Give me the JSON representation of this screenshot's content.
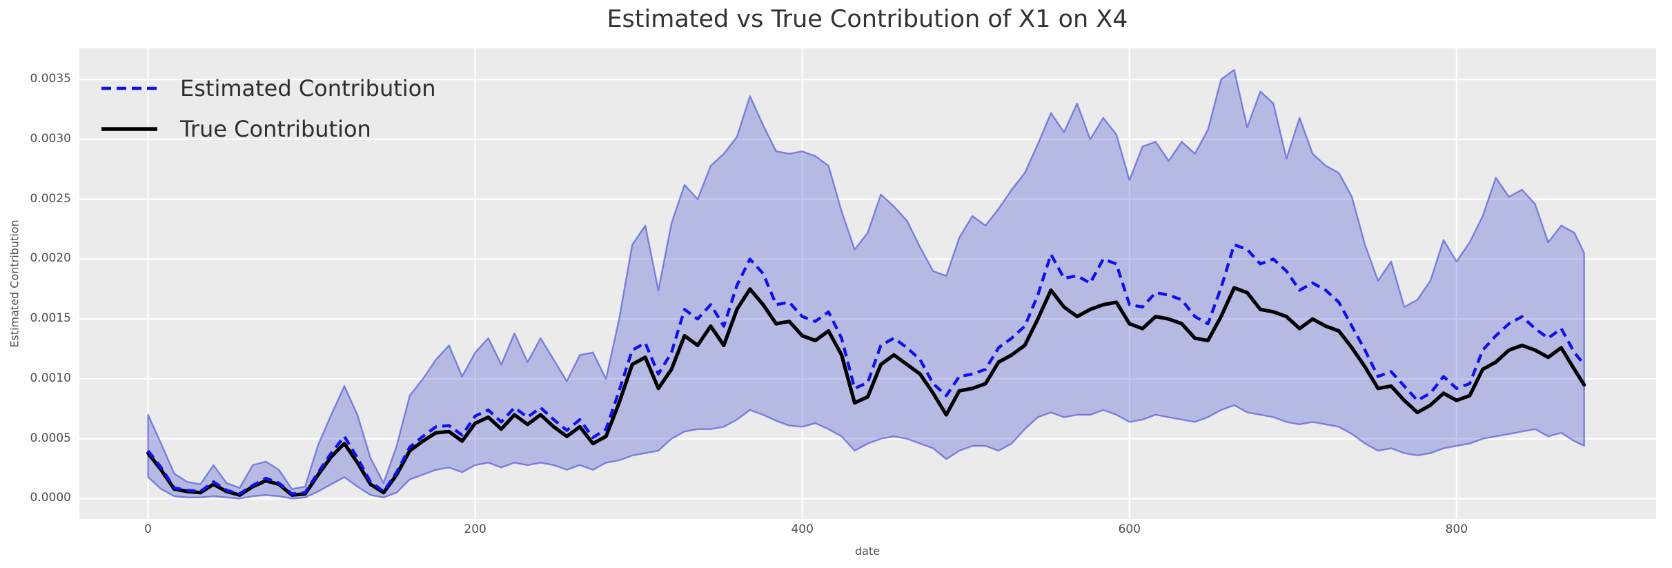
{
  "figure": {
    "background_color": "#ffffff",
    "axes_background_color": "#ebebeb",
    "grid_color": "#ffffff",
    "title_color": "#333333",
    "tick_label_color": "#4d4d4d"
  },
  "legend": {
    "position": "upper left",
    "entries": [
      {
        "label": "Estimated Contribution",
        "style": "dashed",
        "color": "#1010e8"
      },
      {
        "label": "True Contribution",
        "style": "solid",
        "color": "#000000"
      }
    ]
  },
  "chart_data": {
    "type": "line",
    "title": "Estimated vs True Contribution of X1 on X4",
    "xlabel": "date",
    "ylabel": "Estimated Contribution",
    "xlim": [
      -42,
      922
    ],
    "ylim": [
      -0.00017,
      0.00376
    ],
    "grid": true,
    "legend_position": "upper left",
    "x_ticks": [
      0,
      200,
      400,
      600,
      800
    ],
    "x_tick_labels": [
      "0",
      "200",
      "400",
      "600",
      "800"
    ],
    "y_ticks": [
      0.0,
      0.0005,
      0.001,
      0.0015,
      0.002,
      0.0025,
      0.003,
      0.0035
    ],
    "y_tick_labels": [
      "0.0000",
      "0.0005",
      "0.0010",
      "0.0015",
      "0.0020",
      "0.0025",
      "0.0030",
      "0.0035"
    ],
    "band": {
      "color": "#2f3dd1",
      "fill_opacity": 0.28,
      "edge_opacity": 0.55
    },
    "x": [
      0,
      8,
      16,
      24,
      32,
      40,
      48,
      56,
      64,
      72,
      80,
      88,
      96,
      104,
      112,
      120,
      128,
      136,
      144,
      152,
      160,
      168,
      176,
      184,
      192,
      200,
      208,
      216,
      224,
      232,
      240,
      248,
      256,
      264,
      272,
      280,
      288,
      296,
      304,
      312,
      320,
      328,
      336,
      344,
      352,
      360,
      368,
      376,
      384,
      392,
      400,
      408,
      416,
      424,
      432,
      440,
      448,
      456,
      464,
      472,
      480,
      488,
      496,
      504,
      512,
      520,
      528,
      536,
      544,
      552,
      560,
      568,
      576,
      584,
      592,
      600,
      608,
      616,
      624,
      632,
      640,
      648,
      656,
      664,
      672,
      680,
      688,
      696,
      704,
      712,
      720,
      728,
      736,
      744,
      752,
      760,
      768,
      776,
      784,
      792,
      800,
      808,
      816,
      824,
      832,
      840,
      848,
      856,
      864,
      872,
      878
    ],
    "series": [
      {
        "name": "Estimated Contribution",
        "style": "dashed",
        "color": "#1010e8",
        "values": [
          0.0004,
          0.00026,
          9e-05,
          7e-05,
          6e-05,
          0.00014,
          7e-05,
          4e-05,
          0.00011,
          0.00017,
          0.00013,
          4e-05,
          5e-05,
          0.00022,
          0.00038,
          0.00052,
          0.00034,
          0.00014,
          6e-05,
          0.00022,
          0.00043,
          0.00052,
          0.0006,
          0.00061,
          0.00053,
          0.00069,
          0.00074,
          0.00064,
          0.00076,
          0.00068,
          0.00076,
          0.00066,
          0.00057,
          0.00066,
          0.00051,
          0.00058,
          0.0009,
          0.00124,
          0.0013,
          0.00104,
          0.00122,
          0.00158,
          0.0015,
          0.00162,
          0.00144,
          0.00178,
          0.002,
          0.00188,
          0.00162,
          0.00164,
          0.00152,
          0.00148,
          0.00156,
          0.00134,
          0.00092,
          0.00097,
          0.00128,
          0.00134,
          0.00126,
          0.00116,
          0.00096,
          0.00086,
          0.00102,
          0.00104,
          0.00108,
          0.00126,
          0.00134,
          0.00144,
          0.0017,
          0.00204,
          0.00184,
          0.00186,
          0.0018,
          0.002,
          0.00196,
          0.00162,
          0.0016,
          0.00172,
          0.0017,
          0.00166,
          0.00152,
          0.00146,
          0.00176,
          0.00212,
          0.00208,
          0.00196,
          0.002,
          0.0019,
          0.00174,
          0.0018,
          0.00174,
          0.00164,
          0.00144,
          0.00124,
          0.00102,
          0.00106,
          0.00094,
          0.00082,
          0.00088,
          0.00102,
          0.00092,
          0.00096,
          0.00124,
          0.00136,
          0.00146,
          0.00152,
          0.00142,
          0.00134,
          0.00142,
          0.00122,
          0.00112
        ]
      },
      {
        "name": "True Contribution",
        "style": "solid",
        "color": "#000000",
        "values": [
          0.00038,
          0.00024,
          8e-05,
          6e-05,
          5e-05,
          0.00012,
          6e-05,
          3e-05,
          0.0001,
          0.00015,
          0.00012,
          3e-05,
          4e-05,
          0.0002,
          0.00035,
          0.00046,
          0.0003,
          0.00012,
          5e-05,
          0.0002,
          0.0004,
          0.00048,
          0.00055,
          0.00056,
          0.00048,
          0.00063,
          0.00068,
          0.00058,
          0.0007,
          0.00062,
          0.0007,
          0.0006,
          0.00052,
          0.0006,
          0.00046,
          0.00052,
          0.0008,
          0.00112,
          0.00118,
          0.00092,
          0.00108,
          0.00136,
          0.00128,
          0.00144,
          0.00128,
          0.00158,
          0.00175,
          0.00162,
          0.00146,
          0.00148,
          0.00136,
          0.00132,
          0.0014,
          0.0012,
          0.0008,
          0.00085,
          0.00112,
          0.0012,
          0.00112,
          0.00104,
          0.00088,
          0.0007,
          0.0009,
          0.00092,
          0.00096,
          0.00114,
          0.0012,
          0.00128,
          0.0015,
          0.00174,
          0.0016,
          0.00152,
          0.00158,
          0.00162,
          0.00164,
          0.00146,
          0.00142,
          0.00152,
          0.0015,
          0.00146,
          0.00134,
          0.00132,
          0.00152,
          0.00176,
          0.00172,
          0.00158,
          0.00156,
          0.00152,
          0.00142,
          0.0015,
          0.00144,
          0.0014,
          0.00126,
          0.0011,
          0.00092,
          0.00094,
          0.00082,
          0.00072,
          0.00078,
          0.00088,
          0.00082,
          0.00086,
          0.00108,
          0.00114,
          0.00124,
          0.00128,
          0.00124,
          0.00118,
          0.00126,
          0.00108,
          0.00095
        ]
      },
      {
        "name": "Confidence band upper",
        "style": "band-edge",
        "color": "#2f3dd1",
        "values": [
          0.0007,
          0.00046,
          0.00021,
          0.00014,
          0.00012,
          0.00028,
          0.00013,
          9e-05,
          0.00028,
          0.00031,
          0.00024,
          8e-05,
          0.0001,
          0.00045,
          0.0007,
          0.00094,
          0.0007,
          0.00034,
          0.00013,
          0.00044,
          0.00086,
          0.001,
          0.00116,
          0.00128,
          0.00102,
          0.00122,
          0.00134,
          0.00112,
          0.00138,
          0.00114,
          0.00134,
          0.00116,
          0.00098,
          0.0012,
          0.00122,
          0.001,
          0.0015,
          0.00212,
          0.00228,
          0.00174,
          0.0023,
          0.00262,
          0.0025,
          0.00278,
          0.00288,
          0.00302,
          0.00336,
          0.00312,
          0.0029,
          0.00288,
          0.0029,
          0.00286,
          0.00278,
          0.0024,
          0.00208,
          0.00222,
          0.00254,
          0.00244,
          0.00232,
          0.0021,
          0.0019,
          0.00186,
          0.00218,
          0.00236,
          0.00228,
          0.00242,
          0.00258,
          0.00272,
          0.00296,
          0.00322,
          0.00306,
          0.0033,
          0.003,
          0.00318,
          0.00304,
          0.00266,
          0.00294,
          0.00298,
          0.00282,
          0.00298,
          0.00288,
          0.00308,
          0.0035,
          0.00358,
          0.0031,
          0.0034,
          0.0033,
          0.00284,
          0.00318,
          0.00288,
          0.00278,
          0.00272,
          0.00252,
          0.00212,
          0.00182,
          0.00198,
          0.0016,
          0.00166,
          0.00182,
          0.00216,
          0.00198,
          0.00214,
          0.00236,
          0.00268,
          0.00252,
          0.00258,
          0.00246,
          0.00214,
          0.00228,
          0.00222,
          0.00205
        ]
      },
      {
        "name": "Confidence band lower",
        "style": "band-edge",
        "color": "#2f3dd1",
        "values": [
          0.00018,
          8e-05,
          2e-05,
          1e-05,
          1e-05,
          2e-05,
          1e-05,
          0.0,
          2e-05,
          3e-05,
          2e-05,
          0.0,
          1e-05,
          6e-05,
          0.00012,
          0.00018,
          0.0001,
          3e-05,
          1e-05,
          5e-05,
          0.00016,
          0.0002,
          0.00024,
          0.00026,
          0.00022,
          0.00028,
          0.0003,
          0.00026,
          0.0003,
          0.00028,
          0.0003,
          0.00028,
          0.00024,
          0.00028,
          0.00024,
          0.0003,
          0.00032,
          0.00036,
          0.00038,
          0.0004,
          0.0005,
          0.00056,
          0.00058,
          0.00058,
          0.0006,
          0.00066,
          0.00074,
          0.0007,
          0.00065,
          0.00061,
          0.0006,
          0.00063,
          0.00058,
          0.00052,
          0.0004,
          0.00046,
          0.0005,
          0.00052,
          0.0005,
          0.00046,
          0.00042,
          0.00033,
          0.0004,
          0.00044,
          0.00044,
          0.0004,
          0.00046,
          0.00058,
          0.00068,
          0.00072,
          0.00068,
          0.0007,
          0.0007,
          0.00074,
          0.0007,
          0.00064,
          0.00066,
          0.0007,
          0.00068,
          0.00066,
          0.00064,
          0.00068,
          0.00074,
          0.00078,
          0.00072,
          0.0007,
          0.00068,
          0.00064,
          0.00062,
          0.00064,
          0.00062,
          0.0006,
          0.00054,
          0.00046,
          0.0004,
          0.00042,
          0.00038,
          0.00036,
          0.00038,
          0.00042,
          0.00044,
          0.00046,
          0.0005,
          0.00052,
          0.00054,
          0.00056,
          0.00058,
          0.00052,
          0.00055,
          0.00048,
          0.00044
        ]
      }
    ]
  }
}
